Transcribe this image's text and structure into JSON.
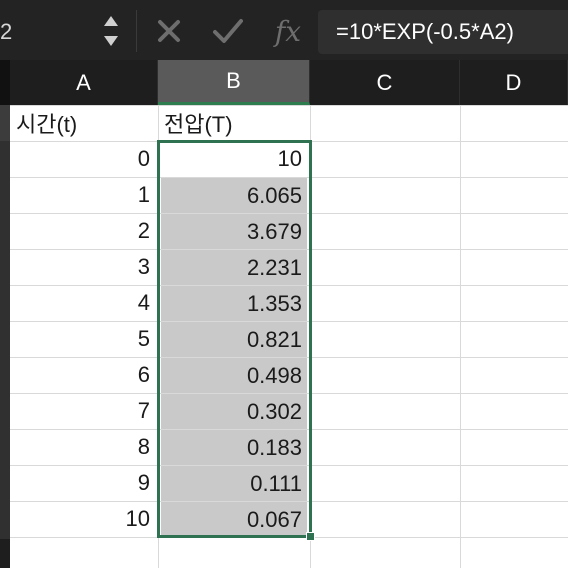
{
  "formula_bar": {
    "name_box": "2",
    "function_symbol": "fx",
    "formula": "=10*EXP(-0.5*A2)"
  },
  "columns": [
    "A",
    "B",
    "C",
    "D"
  ],
  "selected_column": "B",
  "headers": {
    "a": "시간(t)",
    "b": "전압(T)"
  },
  "rows": [
    {
      "a": "0",
      "b": "10"
    },
    {
      "a": "1",
      "b": "6.065"
    },
    {
      "a": "2",
      "b": "3.679"
    },
    {
      "a": "3",
      "b": "2.231"
    },
    {
      "a": "4",
      "b": "1.353"
    },
    {
      "a": "5",
      "b": "0.821"
    },
    {
      "a": "6",
      "b": "0.498"
    },
    {
      "a": "7",
      "b": "0.302"
    },
    {
      "a": "8",
      "b": "0.183"
    },
    {
      "a": "9",
      "b": "0.111"
    },
    {
      "a": "10",
      "b": "0.067"
    }
  ],
  "colors": {
    "selection_border": "#2e7252",
    "selected_fill": "#c9c9c9",
    "header_bg": "#1e1e1e",
    "formula_bar_bg": "#232323"
  }
}
